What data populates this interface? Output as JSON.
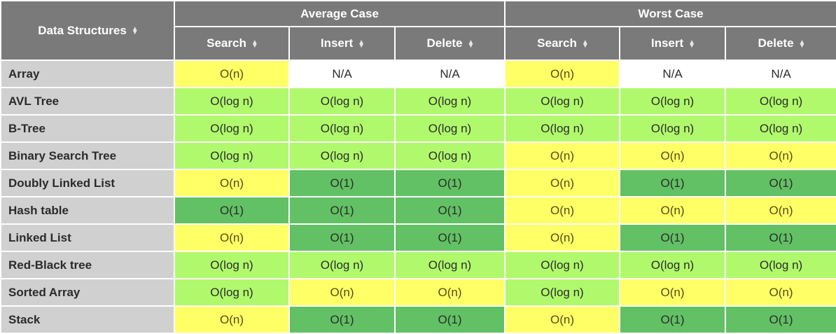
{
  "header": {
    "corner_label": "Data Structures",
    "groups": [
      "Average Case",
      "Worst Case"
    ],
    "columns": [
      "Search",
      "Insert",
      "Delete",
      "Search",
      "Insert",
      "Delete"
    ]
  },
  "rows": [
    {
      "name": "Array",
      "cells": [
        "O(n)",
        "N/A",
        "N/A",
        "O(n)",
        "N/A",
        "N/A"
      ],
      "ratings": [
        "yellow",
        "white",
        "white",
        "yellow",
        "white",
        "white"
      ]
    },
    {
      "name": "AVL Tree",
      "cells": [
        "O(log n)",
        "O(log n)",
        "O(log n)",
        "O(log n)",
        "O(log n)",
        "O(log n)"
      ],
      "ratings": [
        "lightgreen",
        "lightgreen",
        "lightgreen",
        "lightgreen",
        "lightgreen",
        "lightgreen"
      ]
    },
    {
      "name": "B-Tree",
      "cells": [
        "O(log n)",
        "O(log n)",
        "O(log n)",
        "O(log n)",
        "O(log n)",
        "O(log n)"
      ],
      "ratings": [
        "lightgreen",
        "lightgreen",
        "lightgreen",
        "lightgreen",
        "lightgreen",
        "lightgreen"
      ]
    },
    {
      "name": "Binary Search Tree",
      "cells": [
        "O(log n)",
        "O(log n)",
        "O(log n)",
        "O(n)",
        "O(n)",
        "O(n)"
      ],
      "ratings": [
        "lightgreen",
        "lightgreen",
        "lightgreen",
        "yellow",
        "yellow",
        "yellow"
      ]
    },
    {
      "name": "Doubly Linked List",
      "cells": [
        "O(n)",
        "O(1)",
        "O(1)",
        "O(n)",
        "O(1)",
        "O(1)"
      ],
      "ratings": [
        "yellow",
        "green",
        "green",
        "yellow",
        "green",
        "green"
      ]
    },
    {
      "name": "Hash table",
      "cells": [
        "O(1)",
        "O(1)",
        "O(1)",
        "O(n)",
        "O(n)",
        "O(n)"
      ],
      "ratings": [
        "green",
        "green",
        "green",
        "yellow",
        "yellow",
        "yellow"
      ]
    },
    {
      "name": "Linked List",
      "cells": [
        "O(n)",
        "O(1)",
        "O(1)",
        "O(n)",
        "O(1)",
        "O(1)"
      ],
      "ratings": [
        "yellow",
        "green",
        "green",
        "yellow",
        "green",
        "green"
      ]
    },
    {
      "name": "Red-Black tree",
      "cells": [
        "O(log n)",
        "O(log n)",
        "O(log n)",
        "O(log n)",
        "O(log n)",
        "O(log n)"
      ],
      "ratings": [
        "lightgreen",
        "lightgreen",
        "lightgreen",
        "lightgreen",
        "lightgreen",
        "lightgreen"
      ]
    },
    {
      "name": "Sorted Array",
      "cells": [
        "O(log n)",
        "O(n)",
        "O(n)",
        "O(log n)",
        "O(n)",
        "O(n)"
      ],
      "ratings": [
        "lightgreen",
        "yellow",
        "yellow",
        "lightgreen",
        "yellow",
        "yellow"
      ]
    },
    {
      "name": "Stack",
      "cells": [
        "O(n)",
        "O(1)",
        "O(1)",
        "O(n)",
        "O(1)",
        "O(1)"
      ],
      "ratings": [
        "yellow",
        "green",
        "green",
        "yellow",
        "green",
        "green"
      ]
    }
  ],
  "colors": {
    "header_bg": "#7a7a7a",
    "label_bg": "#d0d0d0",
    "yellow": "#ffff66",
    "lightgreen": "#b0f96c",
    "green": "#62c164",
    "white": "#ffffff"
  },
  "icons": {
    "sort": "sort-arrows-icon"
  }
}
